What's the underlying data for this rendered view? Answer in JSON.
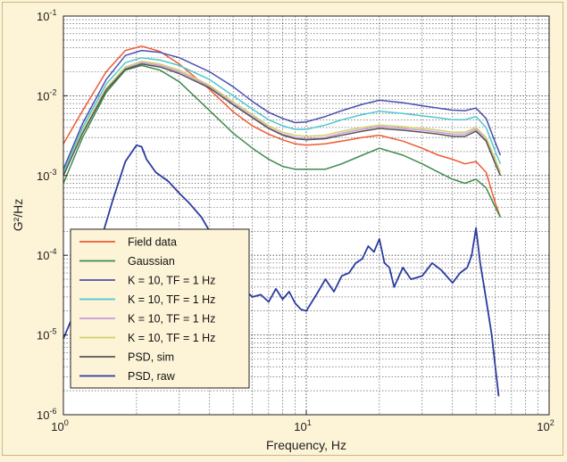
{
  "chart_data": {
    "type": "line",
    "title": "",
    "xlabel": "Frequency, Hz",
    "ylabel": "G²/Hz",
    "xscale": "log",
    "yscale": "log",
    "xlim": [
      1,
      100
    ],
    "ylim": [
      1e-06,
      0.1
    ],
    "grid": true,
    "legend_position": "bottom-left",
    "x_ticks": [
      {
        "base": "10",
        "exp": "0",
        "value": 1
      },
      {
        "base": "10",
        "exp": "1",
        "value": 10
      },
      {
        "base": "10",
        "exp": "2",
        "value": 100
      }
    ],
    "y_ticks": [
      {
        "base": "10",
        "exp": "-6",
        "value": 1e-06
      },
      {
        "base": "10",
        "exp": "-5",
        "value": 1e-05
      },
      {
        "base": "10",
        "exp": "-4",
        "value": 0.0001
      },
      {
        "base": "10",
        "exp": "-3",
        "value": 0.001
      },
      {
        "base": "10",
        "exp": "-2",
        "value": 0.01
      },
      {
        "base": "10",
        "exp": "-1",
        "value": 0.1
      }
    ],
    "series": [
      {
        "name": "Field data",
        "color": "#f05a32",
        "x": [
          1,
          1.2,
          1.5,
          1.8,
          2.1,
          2.5,
          3,
          4,
          5,
          6,
          7,
          8,
          9,
          10,
          12,
          14,
          17,
          20,
          25,
          30,
          35,
          40,
          45,
          50,
          55,
          60,
          63
        ],
        "y": [
          0.0025,
          0.0065,
          0.02,
          0.037,
          0.042,
          0.036,
          0.025,
          0.012,
          0.0063,
          0.0042,
          0.0033,
          0.0028,
          0.0025,
          0.0024,
          0.0025,
          0.0027,
          0.003,
          0.0032,
          0.0027,
          0.0022,
          0.0018,
          0.0016,
          0.0014,
          0.0015,
          0.0011,
          0.00045,
          0.0003
        ]
      },
      {
        "name": "Gaussian",
        "color": "#3f8a4e",
        "x": [
          1,
          1.2,
          1.5,
          1.8,
          2.1,
          2.5,
          3,
          4,
          5,
          6,
          7,
          8,
          9,
          10,
          12,
          14,
          17,
          20,
          25,
          30,
          35,
          40,
          45,
          50,
          55,
          60,
          63
        ],
        "y": [
          0.0008,
          0.003,
          0.011,
          0.021,
          0.024,
          0.021,
          0.015,
          0.0065,
          0.0034,
          0.0022,
          0.0016,
          0.0013,
          0.0012,
          0.0012,
          0.0012,
          0.0014,
          0.0018,
          0.0022,
          0.0018,
          0.0014,
          0.0011,
          0.0009,
          0.0008,
          0.0009,
          0.0007,
          0.0004,
          0.0003
        ]
      },
      {
        "name": "K = 10, TF = 1 Hz",
        "color": "#4b4fb0",
        "x": [
          1,
          1.2,
          1.5,
          1.8,
          2.1,
          2.5,
          3,
          4,
          5,
          6,
          7,
          8,
          9,
          10,
          12,
          14,
          17,
          20,
          25,
          30,
          35,
          40,
          45,
          50,
          55,
          60,
          63
        ],
        "y": [
          0.0012,
          0.0045,
          0.016,
          0.032,
          0.037,
          0.035,
          0.03,
          0.02,
          0.013,
          0.0085,
          0.0062,
          0.0052,
          0.0046,
          0.0047,
          0.0055,
          0.0065,
          0.0078,
          0.0088,
          0.0082,
          0.0075,
          0.007,
          0.0066,
          0.0065,
          0.007,
          0.0052,
          0.0026,
          0.0018
        ]
      },
      {
        "name": "K = 10, TF = 1 Hz",
        "color": "#4fc7cf",
        "x": [
          1,
          1.2,
          1.5,
          1.8,
          2.1,
          2.5,
          3,
          4,
          5,
          6,
          7,
          8,
          9,
          10,
          12,
          14,
          17,
          20,
          25,
          30,
          35,
          40,
          45,
          50,
          55,
          60,
          63
        ],
        "y": [
          0.0011,
          0.004,
          0.014,
          0.026,
          0.03,
          0.028,
          0.024,
          0.016,
          0.01,
          0.0068,
          0.005,
          0.0042,
          0.0038,
          0.0038,
          0.0043,
          0.005,
          0.0058,
          0.0064,
          0.006,
          0.0056,
          0.0053,
          0.005,
          0.005,
          0.0055,
          0.004,
          0.002,
          0.0014
        ]
      },
      {
        "name": "K = 10, TF = 1 Hz",
        "color": "#c99ad8",
        "x": [
          1,
          1.2,
          1.5,
          1.8,
          2.1,
          2.5,
          3,
          4,
          5,
          6,
          7,
          8,
          9,
          10,
          12,
          14,
          17,
          20,
          25,
          30,
          35,
          40,
          45,
          50,
          55,
          60,
          63
        ],
        "y": [
          0.001,
          0.0035,
          0.012,
          0.022,
          0.026,
          0.024,
          0.02,
          0.013,
          0.008,
          0.0055,
          0.004,
          0.0033,
          0.003,
          0.0029,
          0.003,
          0.0034,
          0.0038,
          0.0041,
          0.0039,
          0.0037,
          0.0035,
          0.0033,
          0.0033,
          0.0038,
          0.0028,
          0.0015,
          0.001
        ]
      },
      {
        "name": "K = 10, TF = 1 Hz",
        "color": "#d2cf6a",
        "x": [
          1,
          1.2,
          1.5,
          1.8,
          2.1,
          2.5,
          3,
          4,
          5,
          6,
          7,
          8,
          9,
          10,
          12,
          14,
          17,
          20,
          25,
          30,
          35,
          40,
          45,
          50,
          55,
          60,
          63
        ],
        "y": [
          0.001,
          0.0036,
          0.0125,
          0.023,
          0.027,
          0.025,
          0.021,
          0.0135,
          0.0084,
          0.0058,
          0.0042,
          0.0035,
          0.0032,
          0.0031,
          0.0032,
          0.0036,
          0.004,
          0.0043,
          0.0041,
          0.0039,
          0.0037,
          0.0035,
          0.0035,
          0.004,
          0.003,
          0.0016,
          0.0011
        ]
      },
      {
        "name": "PSD, sim",
        "color": "#555555",
        "x": [
          1,
          1.2,
          1.5,
          1.8,
          2.1,
          2.5,
          3,
          4,
          5,
          6,
          7,
          8,
          9,
          10,
          12,
          14,
          17,
          20,
          25,
          30,
          35,
          40,
          45,
          50,
          55,
          60,
          63
        ],
        "y": [
          0.001,
          0.0034,
          0.0118,
          0.0215,
          0.025,
          0.023,
          0.019,
          0.0125,
          0.0077,
          0.0053,
          0.0039,
          0.0032,
          0.0029,
          0.0028,
          0.0029,
          0.0032,
          0.0036,
          0.0039,
          0.0037,
          0.0035,
          0.0033,
          0.0031,
          0.0031,
          0.0036,
          0.0027,
          0.0014,
          0.001
        ]
      },
      {
        "name": "PSD, raw",
        "color": "#2b3c9e",
        "x": [
          1,
          1.3,
          1.6,
          1.8,
          2.0,
          2.1,
          2.2,
          2.4,
          2.7,
          3.0,
          3.3,
          3.7,
          4.0,
          4.3,
          4.7,
          5.0,
          5.5,
          6.0,
          6.5,
          7.0,
          7.5,
          8.0,
          8.5,
          9.0,
          9.5,
          10,
          11,
          12,
          13,
          14,
          15,
          16,
          17,
          18,
          19,
          20,
          21,
          22,
          23,
          25,
          27,
          30,
          33,
          36,
          40,
          43,
          46,
          48,
          50,
          52,
          54,
          56,
          58,
          60,
          62
        ],
        "y": [
          9e-06,
          6e-05,
          0.0005,
          0.0015,
          0.0024,
          0.0023,
          0.0016,
          0.0011,
          0.00085,
          0.0006,
          0.00045,
          0.0003,
          0.0002,
          0.00012,
          8e-05,
          5e-05,
          3.8e-05,
          3e-05,
          3.2e-05,
          2.6e-05,
          3.8e-05,
          2.8e-05,
          3.5e-05,
          2.5e-05,
          2.1e-05,
          2e-05,
          3.2e-05,
          5e-05,
          3.5e-05,
          5.5e-05,
          6e-05,
          8e-05,
          9e-05,
          0.00013,
          0.00011,
          0.00016,
          8e-05,
          7e-05,
          4e-05,
          7e-05,
          5e-05,
          5.5e-05,
          8e-05,
          6.5e-05,
          4.5e-05,
          6e-05,
          7e-05,
          0.0001,
          0.00022,
          8e-05,
          4e-05,
          2e-05,
          1e-05,
          4e-06,
          1.7e-06
        ]
      }
    ]
  }
}
